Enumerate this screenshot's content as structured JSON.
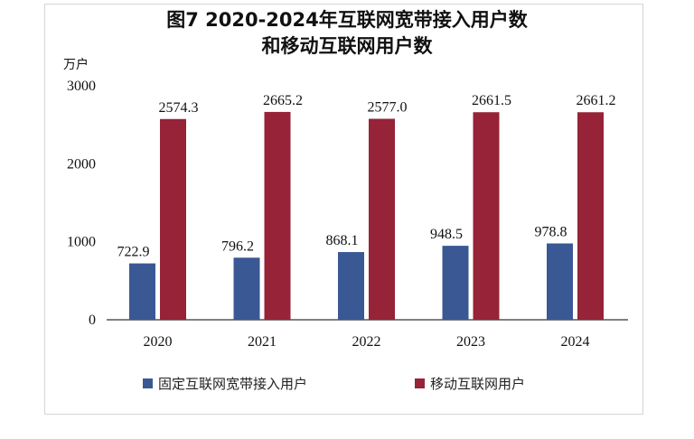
{
  "chart_data": {
    "type": "bar",
    "title_lines": [
      "图7  2020-2024年互联网宽带接入用户数",
      "和移动互联网用户数"
    ],
    "ylabel": "万户",
    "xlabel": "",
    "categories": [
      "2020",
      "2021",
      "2022",
      "2023",
      "2024"
    ],
    "series": [
      {
        "name": "固定互联网宽带接入用户",
        "color": "#3a5894",
        "values": [
          722.9,
          796.2,
          868.1,
          948.5,
          978.8
        ]
      },
      {
        "name": "移动互联网用户",
        "color": "#962337",
        "values": [
          2574.3,
          2665.2,
          2577.0,
          2661.5,
          2661.2
        ]
      }
    ],
    "value_labels": [
      [
        "722.9",
        "796.2",
        "868.1",
        "948.5",
        "978.8"
      ],
      [
        "2574.3",
        "2665.2",
        "2577.0",
        "2661.5",
        "2661.2"
      ]
    ],
    "yticks": [
      "0",
      "1000",
      "2000",
      "3000"
    ],
    "ylim": [
      0,
      3000
    ],
    "grid": false,
    "legend_position": "bottom"
  }
}
